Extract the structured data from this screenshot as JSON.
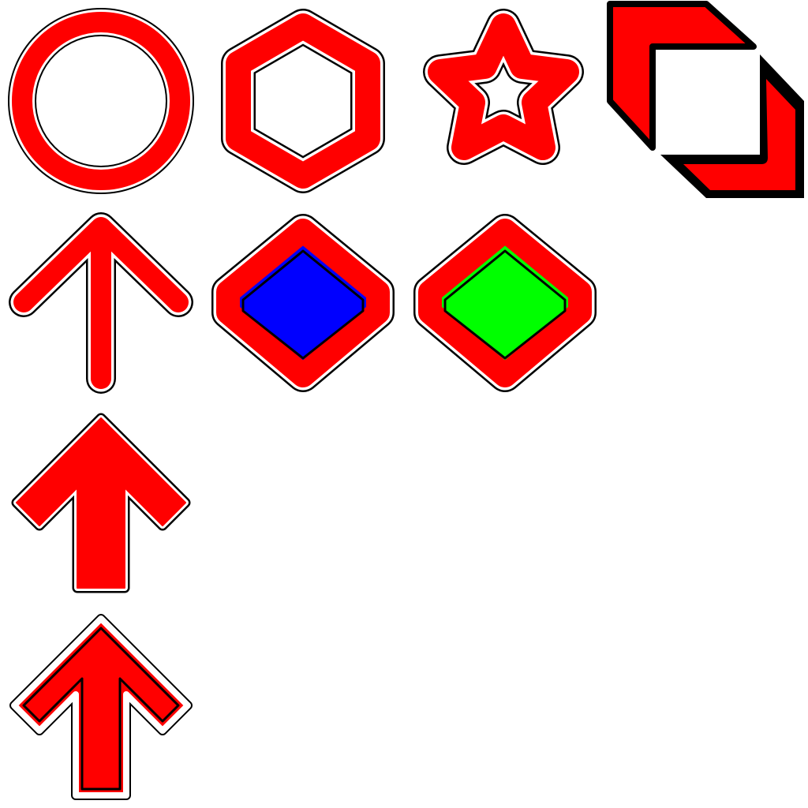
{
  "colors": {
    "background": "#ffffff",
    "primary": "#ff0000",
    "outline": "#000000",
    "gap": "#ffffff",
    "blue_fill": "#0000ff",
    "green_fill": "#00ff00"
  },
  "icons": [
    {
      "name": "ring-icon"
    },
    {
      "name": "hexagon-ring-icon"
    },
    {
      "name": "star-outline-icon"
    },
    {
      "name": "corner-brackets-icon"
    },
    {
      "name": "thin-arrow-up-icon"
    },
    {
      "name": "diamond-blue-icon"
    },
    {
      "name": "diamond-green-icon"
    },
    {
      "name": "bold-arrow-up-icon"
    },
    {
      "name": "outlined-arrow-up-icon"
    }
  ]
}
